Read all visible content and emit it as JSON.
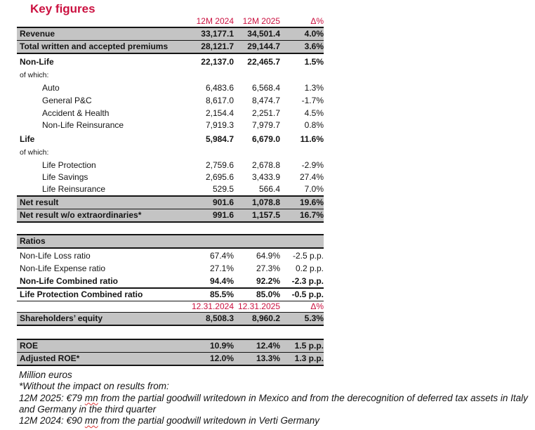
{
  "title": "Key figures",
  "colors": {
    "accent": "#cb1140",
    "row_gray": "#c4c4c4",
    "rule_black": "#141414",
    "squiggle_red": "#e03333"
  },
  "table": {
    "period_header": {
      "c1": "12M 2024",
      "c2": "12M 2025",
      "c3": "Δ%"
    },
    "rows": [
      {
        "label": "Revenue",
        "v1": "33,177.1",
        "v2": "34,501.4",
        "v3": "4.0%"
      },
      {
        "label": "Total written and accepted premiums",
        "v1": "28,121.7",
        "v2": "29,144.7",
        "v3": "3.6%"
      },
      {
        "label": "Non-Life",
        "v1": "22,137.0",
        "v2": "22,465.7",
        "v3": "1.5%"
      },
      {
        "label": "of which:"
      },
      {
        "label": "Auto",
        "v1": "6,483.6",
        "v2": "6,568.4",
        "v3": "1.3%"
      },
      {
        "label": "General P&C",
        "v1": "8,617.0",
        "v2": "8,474.7",
        "v3": "-1.7%"
      },
      {
        "label": "Accident & Health",
        "v1": "2,154.4",
        "v2": "2,251.7",
        "v3": "4.5%"
      },
      {
        "label": "Non-Life Reinsurance",
        "v1": "7,919.3",
        "v2": "7,979.7",
        "v3": "0.8%"
      },
      {
        "label": "Life",
        "v1": "5,984.7",
        "v2": "6,679.0",
        "v3": "11.6%"
      },
      {
        "label": "of which:"
      },
      {
        "label": "Life Protection",
        "v1": "2,759.6",
        "v2": "2,678.8",
        "v3": "-2.9%"
      },
      {
        "label": "Life Savings",
        "v1": "2,695.6",
        "v2": "3,433.9",
        "v3": "27.4%"
      },
      {
        "label": "Life Reinsurance",
        "v1": "529.5",
        "v2": "566.4",
        "v3": "7.0%"
      },
      {
        "label": "Net result",
        "v1": "901.6",
        "v2": "1,078.8",
        "v3": "19.6%"
      },
      {
        "label": "Net result w/o extraordinaries*",
        "v1": "991.6",
        "v2": "1,157.5",
        "v3": "16.7%"
      },
      {
        "label": "Ratios"
      },
      {
        "label": "Non-Life Loss ratio",
        "v1": "67.4%",
        "v2": "64.9%",
        "v3": "-2.5 p.p."
      },
      {
        "label": "Non-Life Expense ratio",
        "v1": "27.1%",
        "v2": "27.3%",
        "v3": "0.2 p.p."
      },
      {
        "label": "Non-Life Combined ratio",
        "v1": "94.4%",
        "v2": "92.2%",
        "v3": "-2.3 p.p."
      },
      {
        "label": "Life Protection Combined ratio",
        "v1": "85.5%",
        "v2": "85.0%",
        "v3": "-0.5 p.p."
      },
      {
        "label": "",
        "v1": "12.31.2024",
        "v2": "12.31.2025",
        "v3": "Δ%"
      },
      {
        "label": "Shareholders’ equity",
        "v1": "8,508.3",
        "v2": "8,960.2",
        "v3": "5.3%"
      },
      {
        "label": "ROE",
        "v1": "10.9%",
        "v2": "12.4%",
        "v3": "1.5 p.p."
      },
      {
        "label": "Adjusted ROE*",
        "v1": "12.0%",
        "v2": "13.3%",
        "v3": "1.3 p.p."
      }
    ]
  },
  "footnotes": {
    "unit": "Million euros",
    "impact": "*Without the impact on results from:",
    "note_2025": {
      "pre": "12M 2025: €79 ",
      "word": "mn",
      "post": " from the partial goodwill writedown in Mexico and from the derecognition of deferred tax assets in Italy and Germany in the third quarter"
    },
    "note_2024": {
      "pre": "12M 2024: €90 ",
      "word": "mn",
      "post": " from the partial goodwill writedown in Verti Germany"
    }
  }
}
